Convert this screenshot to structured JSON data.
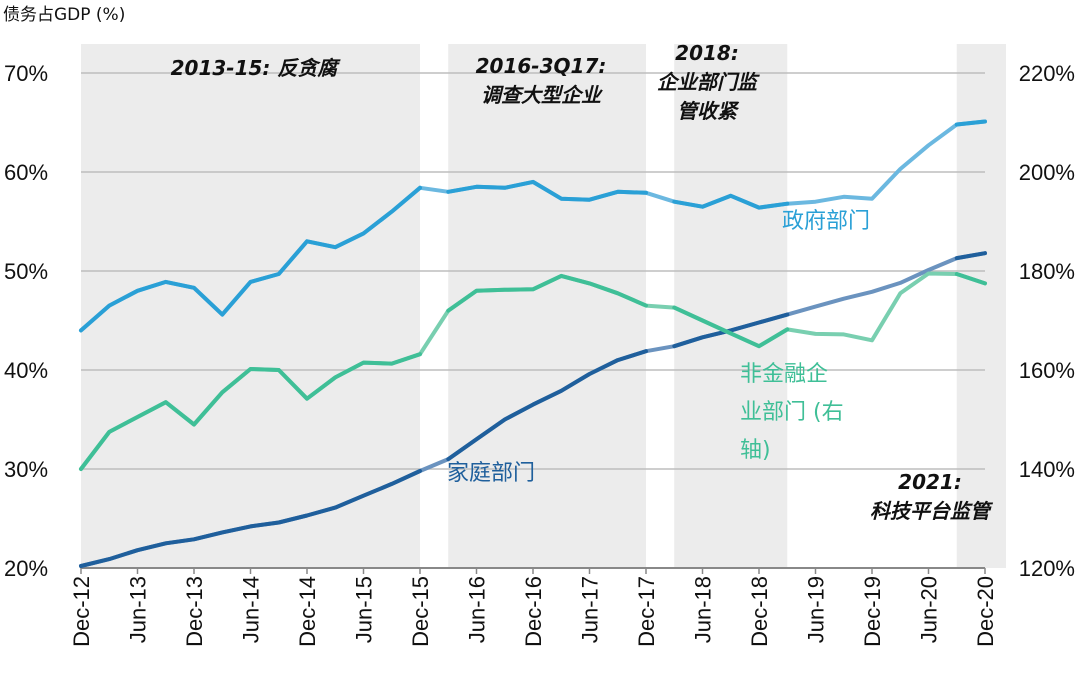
{
  "chart_data": {
    "type": "line",
    "title": "",
    "ylabel": "债务占GDP (%)",
    "ylim": [
      20,
      70
    ],
    "y_ticks": [
      "20%",
      "30%",
      "40%",
      "50%",
      "60%",
      "70%"
    ],
    "y2lim": [
      120,
      220
    ],
    "y2_ticks": [
      "120%",
      "140%",
      "160%",
      "180%",
      "200%",
      "220%"
    ],
    "x_labels": [
      "Dec-12",
      "Jun-13",
      "Dec-13",
      "Jun-14",
      "Dec-14",
      "Jun-15",
      "Dec-15",
      "Jun-16",
      "Dec-16",
      "Jun-17",
      "Dec-17",
      "Jun-18",
      "Dec-18",
      "Jun-19",
      "Dec-19",
      "Jun-20",
      "Dec-20"
    ],
    "x": [
      0,
      0.5,
      1,
      1.5,
      2,
      2.5,
      3,
      3.5,
      4,
      4.5,
      5,
      5.5,
      6,
      6.5,
      7,
      7.5,
      8,
      8.5,
      9,
      9.5,
      10,
      10.5,
      11,
      11.5,
      12,
      12.5,
      13,
      13.5,
      14,
      14.5,
      15,
      15.5,
      16
    ],
    "series": [
      {
        "name": "政府部门",
        "axis": "left",
        "color": "#6BB8E0",
        "highlight_color": "#2AA0D6",
        "values": [
          44,
          46.5,
          48,
          48.9,
          48.3,
          45.6,
          48.9,
          49.7,
          53,
          52.4,
          53.8,
          56,
          58.4,
          58,
          58.5,
          58.4,
          59,
          57.3,
          57.2,
          58,
          57.9,
          57,
          56.5,
          57.6,
          56.4,
          56.8,
          57,
          57.5,
          57.3,
          60.3,
          62.7,
          64.8,
          65.1
        ]
      },
      {
        "name": "家庭部门",
        "axis": "left",
        "color": "#6B93BF",
        "highlight_color": "#1F5F9C",
        "values": [
          20.2,
          20.9,
          21.8,
          22.5,
          22.9,
          23.6,
          24.2,
          24.6,
          25.3,
          26.1,
          27.3,
          28.5,
          29.8,
          31,
          33,
          35,
          36.5,
          37.9,
          39.6,
          41,
          41.9,
          42.4,
          43.3,
          44,
          44.8,
          45.6,
          46.4,
          47.2,
          47.9,
          48.8,
          50.1,
          51.3,
          51.8
        ]
      },
      {
        "name": "非金融企业部门 (右轴)",
        "axis": "right",
        "color": "#79CFB0",
        "highlight_color": "#3FBF97",
        "values": [
          140,
          147.5,
          150.5,
          153.5,
          149,
          155.5,
          160.2,
          160,
          154.2,
          158.5,
          161.5,
          161.3,
          163.2,
          172,
          176,
          176.2,
          176.3,
          179,
          177.5,
          175.5,
          173,
          172.6,
          170,
          167.4,
          164.8,
          168.2,
          167.3,
          167.2,
          166,
          175.5,
          179.5,
          179.4,
          177.5
        ]
      }
    ],
    "series_labels": [
      {
        "key": "gov",
        "lines": [
          "政府部门"
        ]
      },
      {
        "key": "house",
        "lines": [
          "家庭部门"
        ]
      },
      {
        "key": "corp",
        "lines": [
          "非金融企",
          "业部门 (右",
          "轴)"
        ]
      }
    ],
    "shaded_periods": [
      {
        "start": 0,
        "end": 6,
        "lines": [
          "2013-15: 反贪腐"
        ]
      },
      {
        "start": 6.5,
        "end": 10,
        "lines": [
          "2016-3Q17:",
          "调查大型企业"
        ]
      },
      {
        "start": 10.5,
        "end": 12.5,
        "lines": [
          "2018:",
          "企业部门监",
          "管收紧"
        ]
      },
      {
        "start": 15.5,
        "end": 16.5,
        "lines": [
          "2021:",
          "科技平台监管"
        ]
      }
    ]
  }
}
